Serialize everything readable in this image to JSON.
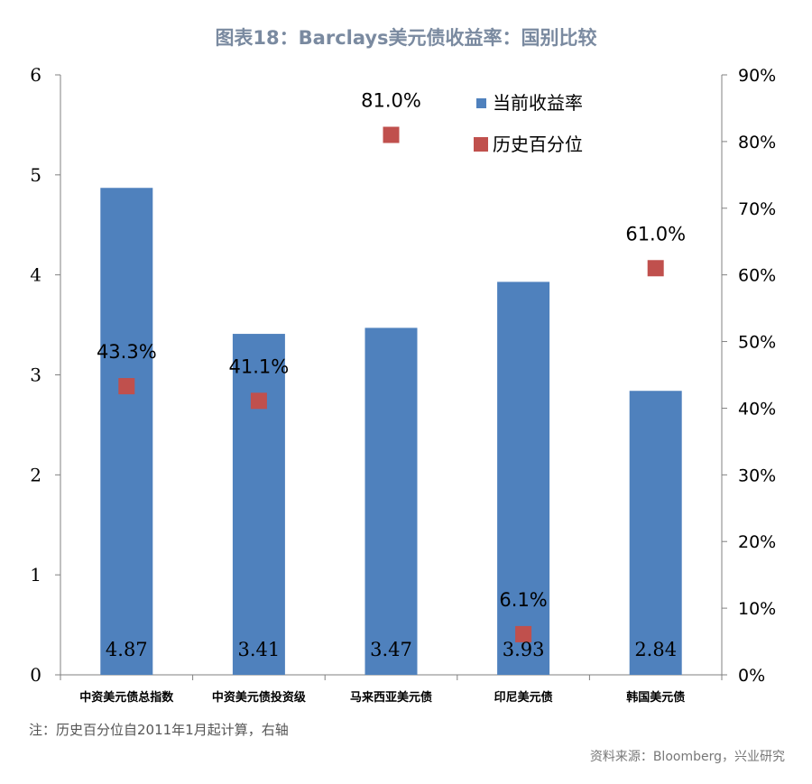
{
  "title": "图表18：Barclays美元债收益率：国别比较",
  "note": "注：历史百分位自2011年1月起计算，右轴",
  "source": "资料来源：Bloomberg，兴业研究",
  "colors": {
    "bar": "#4f81bd",
    "marker": "#c0504d",
    "axis": "#808080",
    "title": "#7a8aa0"
  },
  "chart_data": {
    "type": "bar",
    "title": "图表18：Barclays美元债收益率：国别比较",
    "categories": [
      "中资美元债总指数",
      "中资美元债投资级",
      "马来西亚美元债",
      "印尼美元债",
      "韩国美元债"
    ],
    "series": [
      {
        "name": "当前收益率",
        "type": "bar",
        "axis": "left",
        "values": [
          4.87,
          3.41,
          3.47,
          3.93,
          2.84
        ],
        "labels": [
          "4.87",
          "3.41",
          "3.47",
          "3.93",
          "2.84"
        ]
      },
      {
        "name": "历史百分位",
        "type": "scatter",
        "axis": "right",
        "values": [
          43.3,
          41.1,
          81.0,
          6.1,
          61.0
        ],
        "labels": [
          "43.3%",
          "41.1%",
          "81.0%",
          "6.1%",
          "61.0%"
        ]
      }
    ],
    "ylim_left": [
      0,
      6
    ],
    "yticks_left": [
      "0",
      "1",
      "2",
      "3",
      "4",
      "5",
      "6"
    ],
    "ylim_right": [
      0,
      90
    ],
    "yticks_right": [
      "0%",
      "10%",
      "20%",
      "30%",
      "40%",
      "50%",
      "60%",
      "70%",
      "80%",
      "90%"
    ],
    "legend_position": "top-right",
    "grid": false
  }
}
